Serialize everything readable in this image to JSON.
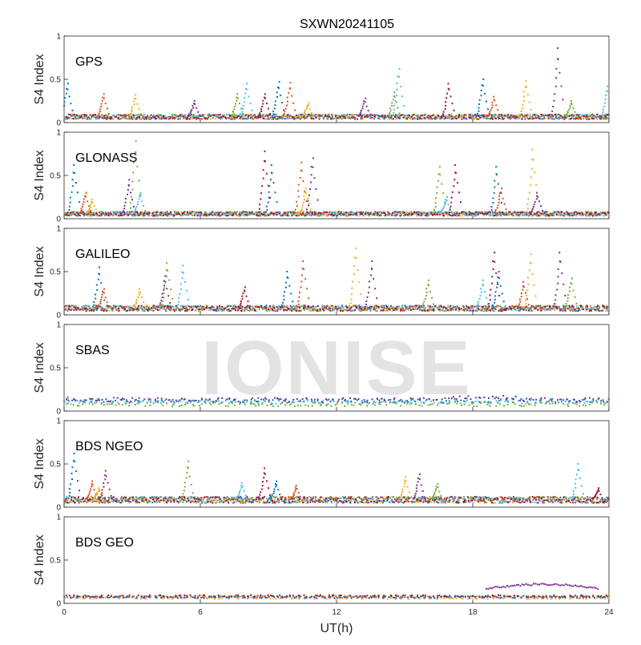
{
  "chart_data": {
    "type": "scatter",
    "title": "SXWN20241105",
    "xlabel": "UT(h)",
    "ylabel": "S4 Index",
    "xlim": [
      0,
      24
    ],
    "ylim": [
      0,
      1
    ],
    "xticks": [
      "0",
      "6",
      "12",
      "18",
      "24"
    ],
    "yticks": [
      "0",
      "0.5",
      "1"
    ],
    "watermark": "IONISE",
    "colors": [
      "#0072BD",
      "#D95319",
      "#EDB120",
      "#7E2F8E",
      "#77AC30",
      "#4DBEEE",
      "#A2142F"
    ],
    "panels": [
      {
        "name": "GPS",
        "baseline": 0.07,
        "spikes": [
          [
            0.1,
            0.45
          ],
          [
            1.7,
            0.33
          ],
          [
            3.1,
            0.32
          ],
          [
            5.7,
            0.25
          ],
          [
            7.6,
            0.33
          ],
          [
            8.0,
            0.45
          ],
          [
            8.8,
            0.33
          ],
          [
            9.4,
            0.47
          ],
          [
            9.9,
            0.46
          ],
          [
            10.7,
            0.23
          ],
          [
            13.2,
            0.28
          ],
          [
            14.5,
            0.35
          ],
          [
            14.7,
            0.62
          ],
          [
            16.9,
            0.45
          ],
          [
            18.4,
            0.5
          ],
          [
            18.9,
            0.3
          ],
          [
            20.3,
            0.48
          ],
          [
            21.7,
            0.86
          ],
          [
            22.3,
            0.25
          ],
          [
            23.9,
            0.42
          ]
        ]
      },
      {
        "name": "GLONASS",
        "baseline": 0.06,
        "spikes": [
          [
            0.4,
            0.62
          ],
          [
            0.9,
            0.3
          ],
          [
            1.2,
            0.22
          ],
          [
            2.8,
            0.45
          ],
          [
            3.1,
            0.9
          ],
          [
            3.3,
            0.3
          ],
          [
            8.8,
            0.78
          ],
          [
            9.1,
            0.62
          ],
          [
            10.4,
            0.65
          ],
          [
            10.6,
            0.35
          ],
          [
            10.9,
            0.7
          ],
          [
            16.5,
            0.6
          ],
          [
            16.8,
            0.25
          ],
          [
            17.2,
            0.62
          ],
          [
            19.0,
            0.6
          ],
          [
            19.2,
            0.35
          ],
          [
            20.6,
            0.8
          ],
          [
            20.8,
            0.3
          ]
        ]
      },
      {
        "name": "GALILEO",
        "baseline": 0.08,
        "spikes": [
          [
            1.5,
            0.55
          ],
          [
            1.7,
            0.3
          ],
          [
            3.3,
            0.3
          ],
          [
            4.4,
            0.45
          ],
          [
            4.5,
            0.6
          ],
          [
            5.2,
            0.57
          ],
          [
            7.9,
            0.32
          ],
          [
            9.8,
            0.5
          ],
          [
            10.5,
            0.62
          ],
          [
            12.8,
            0.77
          ],
          [
            13.5,
            0.62
          ],
          [
            16.0,
            0.4
          ],
          [
            18.4,
            0.4
          ],
          [
            18.9,
            0.72
          ],
          [
            19.1,
            0.5
          ],
          [
            20.2,
            0.38
          ],
          [
            20.5,
            0.7
          ],
          [
            21.8,
            0.72
          ],
          [
            22.3,
            0.42
          ]
        ]
      },
      {
        "name": "SBAS",
        "baseline": 0.12,
        "spikes": []
      },
      {
        "name": "BDS NGEO",
        "baseline": 0.09,
        "spikes": [
          [
            0.4,
            0.62
          ],
          [
            1.2,
            0.3
          ],
          [
            1.5,
            0.22
          ],
          [
            1.8,
            0.42
          ],
          [
            5.4,
            0.53
          ],
          [
            7.8,
            0.28
          ],
          [
            8.8,
            0.45
          ],
          [
            9.3,
            0.3
          ],
          [
            10.2,
            0.25
          ],
          [
            15.0,
            0.35
          ],
          [
            15.6,
            0.38
          ],
          [
            16.4,
            0.27
          ],
          [
            22.6,
            0.5
          ],
          [
            23.5,
            0.22
          ]
        ]
      },
      {
        "name": "BDS GEO",
        "baseline": 0.07,
        "spikes": []
      }
    ]
  }
}
